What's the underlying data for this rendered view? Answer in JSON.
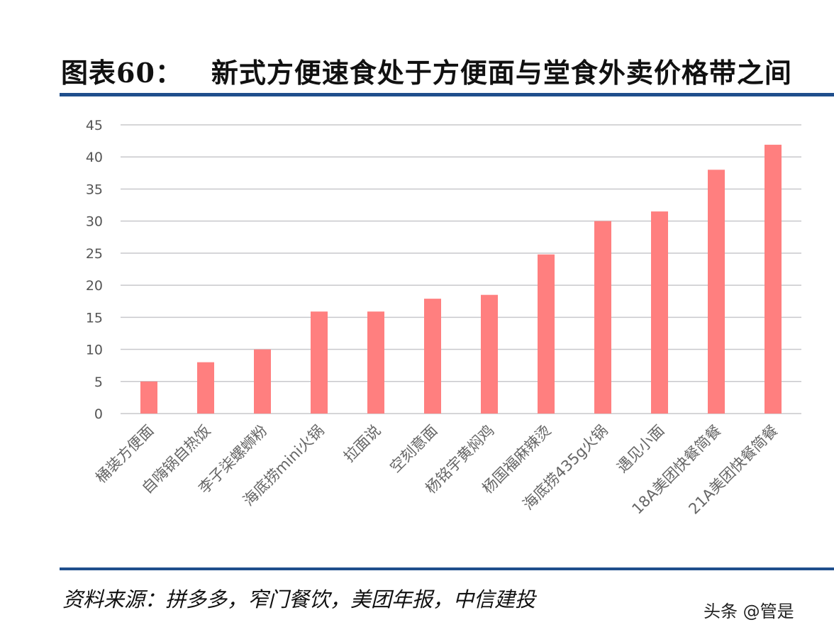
{
  "title_prefix": "图表60：",
  "title_text": "新式方便速食处于方便面与堂食外卖价格带之间",
  "source": "资料来源：拼多多，窄门餐饮，美团年报，中信建投",
  "watermark": "头条 @管是",
  "chart_data": {
    "type": "bar",
    "categories": [
      "桶装方便面",
      "自嗨锅自热饭",
      "李子柒螺蛳粉",
      "海底捞mini火锅",
      "拉面说",
      "空刻意面",
      "杨铭宇黄焖鸡",
      "杨国福麻辣烫",
      "海底捞435g火锅",
      "遇见小面",
      "18A美团快餐简餐",
      "21A美团快餐简餐"
    ],
    "values": [
      5,
      8,
      10,
      15.9,
      15.9,
      17.9,
      18.5,
      24.8,
      30,
      31.5,
      38,
      41.9
    ],
    "yticks": [
      "0",
      "5",
      "10",
      "15",
      "20",
      "25",
      "30",
      "35",
      "40",
      "45"
    ],
    "ylim": [
      0,
      45
    ],
    "grid": true,
    "bar_color": "#ff7f7f"
  }
}
